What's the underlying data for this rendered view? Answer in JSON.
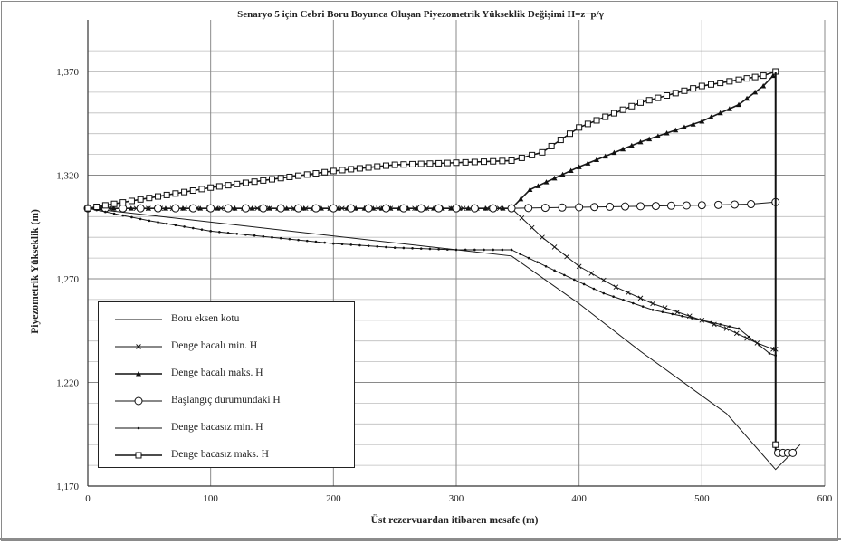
{
  "chart_data": {
    "type": "line",
    "title": "Senaryo 5 için Cebri Boru Boyunca Oluşan Piyezometrik Yükseklik Değişimi H=z+p/γ",
    "xlabel": "Üst rezervuardan itibaren mesafe (m)",
    "ylabel": "Piyezometrik Yükseklik (m)",
    "xlim": [
      0,
      600
    ],
    "ylim": [
      1170,
      1370
    ],
    "x_ticks": [
      "0",
      "100",
      "200",
      "300",
      "400",
      "500",
      "600"
    ],
    "y_ticks": [
      "1,170",
      "1,220",
      "1,270",
      "1,320",
      "1,370"
    ],
    "y_tick_labels_printed": [
      "1,170",
      "1,220",
      "1,270",
      "1,320",
      "1,370"
    ],
    "grid": true,
    "legend_position": "bottom-left",
    "series": [
      {
        "name": "Boru eksen kotu",
        "marker": "none",
        "color": "#1a1a1a",
        "x": [
          0,
          345,
          400,
          450,
          520,
          560,
          580
        ],
        "y": [
          1304,
          1281,
          1258,
          1235,
          1205,
          1178,
          1190
        ]
      },
      {
        "name": "Denge bacalı min. H",
        "marker": "x",
        "color": "#1a1a1a",
        "x": [
          0,
          345,
          370,
          400,
          430,
          460,
          490,
          520,
          545,
          558,
          560
        ],
        "y": [
          1304,
          1304,
          1290,
          1276,
          1266,
          1258,
          1252,
          1246,
          1239,
          1236,
          1236
        ]
      },
      {
        "name": "Denge bacalı maks. H",
        "marker": "triangle",
        "color": "#1a1a1a",
        "x": [
          0,
          345,
          360,
          400,
          450,
          500,
          530,
          550,
          558,
          560
        ],
        "y": [
          1304,
          1304,
          1313,
          1324,
          1336,
          1346,
          1354,
          1363,
          1368,
          1370
        ]
      },
      {
        "name": "Başlangıç durumundaki H",
        "marker": "circle",
        "color": "#1a1a1a",
        "x": [
          0,
          100,
          200,
          300,
          345,
          400,
          450,
          500,
          540,
          560
        ],
        "y": [
          1304,
          1304,
          1304,
          1304,
          1304,
          1304.5,
          1305,
          1305.5,
          1306,
          1307
        ]
      },
      {
        "name": "Denge bacasız min. H",
        "marker": "dot",
        "color": "#1a1a1a",
        "x": [
          0,
          50,
          100,
          150,
          200,
          250,
          300,
          345,
          380,
          420,
          460,
          500,
          530,
          555,
          560
        ],
        "y": [
          1304,
          1298,
          1293,
          1290,
          1287,
          1285,
          1284,
          1284,
          1274,
          1263,
          1255,
          1250,
          1246,
          1234,
          1233
        ]
      },
      {
        "name": "Denge bacasız maks. H",
        "marker": "square",
        "color": "#1a1a1a",
        "x": [
          0,
          50,
          100,
          150,
          200,
          250,
          300,
          345,
          370,
          400,
          450,
          500,
          530,
          550,
          560
        ],
        "y": [
          1304,
          1309,
          1314,
          1318,
          1322,
          1325,
          1326,
          1327,
          1331,
          1343,
          1355,
          1363,
          1366,
          1368,
          1370
        ]
      }
    ],
    "drop_line": {
      "x": [
        560,
        560,
        575
      ],
      "y": [
        1370,
        1186,
        1186
      ]
    }
  }
}
